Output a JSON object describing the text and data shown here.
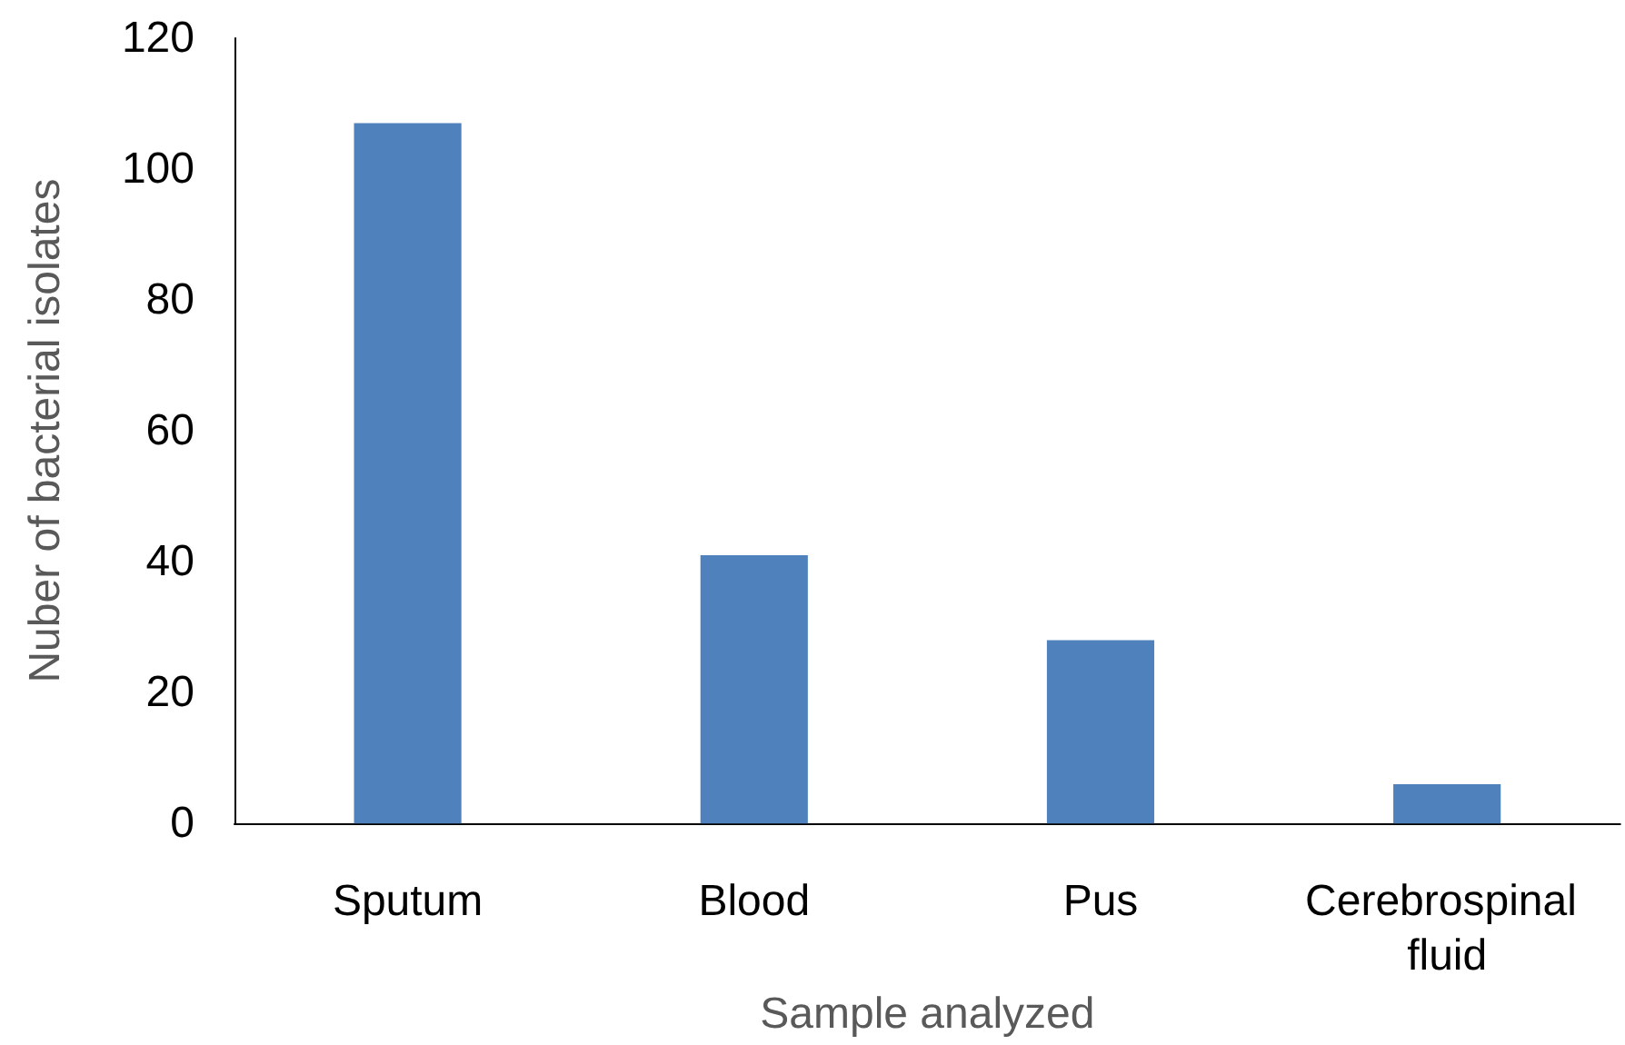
{
  "chart_data": {
    "type": "bar",
    "xlabel": "Sample analyzed",
    "ylabel": "Nuber of bacterial isolates",
    "categories": [
      "Sputum",
      "Blood",
      "Pus",
      "Cerebrospinal fluid"
    ],
    "values": [
      107,
      41,
      28,
      6
    ],
    "color": "#4f81bd",
    "ylim": [
      0,
      120
    ],
    "yticks": [
      0,
      20,
      40,
      60,
      80,
      100,
      120
    ],
    "grid": false
  }
}
